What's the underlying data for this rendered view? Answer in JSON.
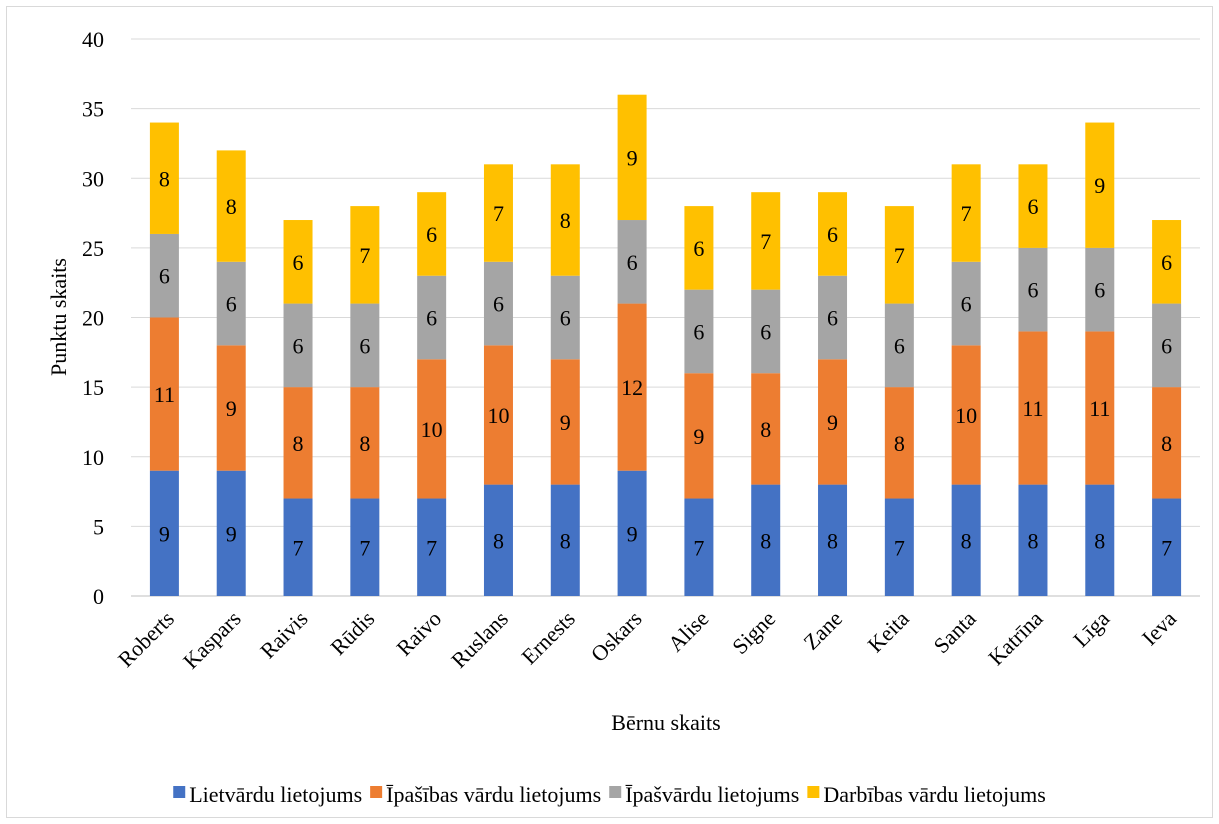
{
  "chart_data": {
    "type": "bar",
    "stacked": true,
    "title": "",
    "xlabel": "Bērnu skaits",
    "ylabel": "Punktu skaits",
    "ylim": [
      0,
      40
    ],
    "yticks": [
      0,
      5,
      10,
      15,
      20,
      25,
      30,
      35,
      40
    ],
    "grid": true,
    "legend_position": "bottom",
    "categories": [
      "Roberts",
      "Kaspars",
      "Raivis",
      "Rūdis",
      "Raivo",
      "Ruslans",
      "Ernests",
      "Oskars",
      "Alise",
      "Signe",
      "Zane",
      "Keita",
      "Santa",
      "Katrīna",
      "Līga",
      "Ieva"
    ],
    "series": [
      {
        "name": "Lietvārdu lietojums",
        "color": "#4472c4",
        "values": [
          9,
          9,
          7,
          7,
          7,
          8,
          8,
          9,
          7,
          8,
          8,
          7,
          8,
          8,
          8,
          7
        ]
      },
      {
        "name": "Īpašības vārdu lietojums",
        "color": "#ed7d31",
        "values": [
          11,
          9,
          8,
          8,
          10,
          10,
          9,
          12,
          9,
          8,
          9,
          8,
          10,
          11,
          11,
          8
        ]
      },
      {
        "name": "Īpašvārdu lietojums",
        "color": "#a5a5a5",
        "values": [
          6,
          6,
          6,
          6,
          6,
          6,
          6,
          6,
          6,
          6,
          6,
          6,
          6,
          6,
          6,
          6
        ]
      },
      {
        "name": "Darbības vārdu lietojums",
        "color": "#ffc000",
        "values": [
          8,
          8,
          6,
          7,
          6,
          7,
          8,
          9,
          6,
          7,
          6,
          7,
          7,
          6,
          9,
          6
        ]
      }
    ]
  }
}
